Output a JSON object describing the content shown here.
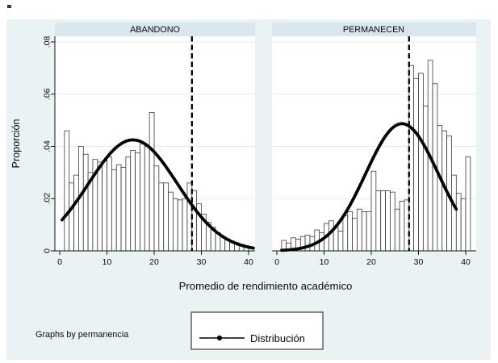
{
  "chart_data": {
    "type": "bar",
    "subtype": "faceted-histogram-with-density-curve",
    "xlabel": "Promedio de rendimiento académico",
    "ylabel": "Proporción",
    "note": "Graphs by permanencia",
    "legend": {
      "label": "Distribución",
      "marker": "line-with-dot"
    },
    "x_ticks": [
      0,
      10,
      20,
      30,
      40
    ],
    "y_ticks": [
      {
        "value": 0,
        "label": "0"
      },
      {
        "value": 0.02,
        "label": ".02"
      },
      {
        "value": 0.04,
        "label": ".04"
      },
      {
        "value": 0.06,
        "label": ".06"
      },
      {
        "value": 0.08,
        "label": ".08"
      }
    ],
    "xlim": [
      -1,
      42
    ],
    "ylim": [
      0,
      0.082
    ],
    "bin_width": 1,
    "first_bin_left_edge": 1,
    "reference_line_x": 28,
    "gridlines": "horizontal",
    "panels": [
      {
        "title": "ABANDONO",
        "bar_heights": [
          0.046,
          0.026,
          0.029,
          0.04,
          0.037,
          0.03,
          0.035,
          0.034,
          0.0345,
          0.036,
          0.031,
          0.033,
          0.032,
          0.036,
          0.0385,
          0.0375,
          0.041,
          0.04,
          0.053,
          0.0325,
          0.026,
          0.026,
          0.0225,
          0.02,
          0.0195,
          0.02,
          0.026,
          0.023,
          0.018,
          0.014,
          0.011,
          0.009,
          0.007,
          0.0055,
          0.0046,
          0.0037,
          0.0031,
          0.0025,
          0.002,
          0.0015
        ],
        "density_curve": {
          "peak_x": 15.5,
          "peak_y": 0.0425,
          "sigma": 9.4,
          "x_from": 0.5,
          "x_to": 41
        }
      },
      {
        "title": "PERMANECEN",
        "bar_heights": [
          0.004,
          0.003,
          0.005,
          0.0045,
          0.0055,
          0.006,
          0.0055,
          0.008,
          0.007,
          0.0105,
          0.0115,
          0.009,
          0.0075,
          0.0135,
          0.015,
          0.0125,
          0.016,
          0.015,
          0.015,
          0.0305,
          0.023,
          0.023,
          0.023,
          0.0225,
          0.016,
          0.019,
          0.0195,
          0.071,
          0.066,
          0.068,
          0.0555,
          0.073,
          0.064,
          0.048,
          0.046,
          0.044,
          0.029,
          0.022,
          0.02,
          0.036
        ],
        "density_curve": {
          "peak_x": 26.5,
          "peak_y": 0.0487,
          "sigma": 7.7,
          "x_from": 1,
          "x_to": 38
        }
      }
    ],
    "colors": {
      "background": "#eaf2f3",
      "plot_background": "#ffffff",
      "strip_background": "#d9e6eb",
      "gridline": "#e2edf0",
      "bar_fill": "#ffffff",
      "bar_stroke": "#2e2e2e",
      "curve": "#000000",
      "reference_line": "#000000",
      "axis": "#161616"
    }
  }
}
